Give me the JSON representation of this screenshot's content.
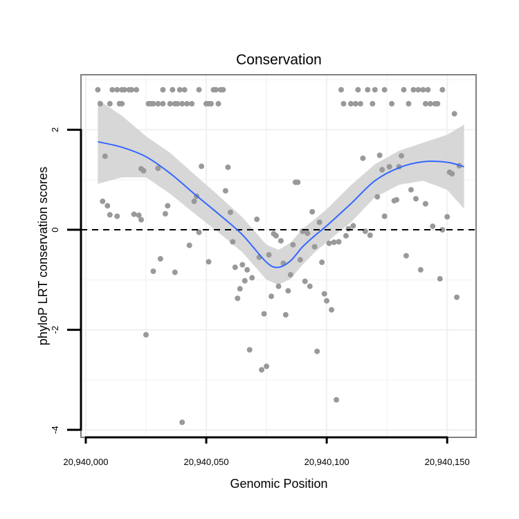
{
  "chart_data": {
    "type": "scatter",
    "title": "Conservation",
    "xlabel": "Genomic Position",
    "ylabel": "phyloP LRT conservation scores",
    "xlim": [
      20939998,
      20940162
    ],
    "ylim": [
      -4.15,
      3.1
    ],
    "xticks": [
      20940000,
      20940050,
      20940100,
      20940150
    ],
    "xtick_labels": [
      "20,940,000",
      "20,940,050",
      "20,940,100",
      "20,940,150"
    ],
    "yticks": [
      -4,
      -2,
      0,
      2
    ],
    "ytick_labels": [
      "-4",
      "-2",
      "0",
      "2"
    ],
    "grid": true,
    "reference_line": {
      "y": 0,
      "style": "dashed"
    },
    "colors": {
      "points": "#999999",
      "smooth": "#3366ff",
      "band": "#d3d3d3",
      "border": "#7f7f7f",
      "grid": "#f0f0f0"
    },
    "series": [
      {
        "name": "scores",
        "type": "scatter",
        "points": [
          [
            20940005,
            2.8
          ],
          [
            20940006,
            2.52
          ],
          [
            20940007,
            0.57
          ],
          [
            20940008,
            1.47
          ],
          [
            20940009,
            0.48
          ],
          [
            20940010,
            2.52
          ],
          [
            20940010,
            0.3
          ],
          [
            20940011,
            2.8
          ],
          [
            20940013,
            2.8
          ],
          [
            20940013,
            0.27
          ],
          [
            20940014,
            2.52
          ],
          [
            20940015,
            2.8
          ],
          [
            20940015,
            2.52
          ],
          [
            20940016,
            2.8
          ],
          [
            20940018,
            2.8
          ],
          [
            20940019,
            2.8
          ],
          [
            20940020,
            0.31
          ],
          [
            20940021,
            2.8
          ],
          [
            20940022,
            0.29
          ],
          [
            20940023,
            0.2
          ],
          [
            20940023,
            1.22
          ],
          [
            20940024,
            1.18
          ],
          [
            20940025,
            -2.1
          ],
          [
            20940026,
            2.52
          ],
          [
            20940027,
            2.52
          ],
          [
            20940028,
            -0.83
          ],
          [
            20940028,
            2.52
          ],
          [
            20940030,
            1.23
          ],
          [
            20940030,
            2.52
          ],
          [
            20940031,
            -0.58
          ],
          [
            20940032,
            2.52
          ],
          [
            20940032,
            2.8
          ],
          [
            20940033,
            0.32
          ],
          [
            20940034,
            0.48
          ],
          [
            20940035,
            2.52
          ],
          [
            20940036,
            2.8
          ],
          [
            20940037,
            2.52
          ],
          [
            20940037,
            -0.85
          ],
          [
            20940038,
            2.52
          ],
          [
            20940039,
            2.8
          ],
          [
            20940040,
            -3.85
          ],
          [
            20940040,
            2.52
          ],
          [
            20940041,
            2.8
          ],
          [
            20940042,
            2.52
          ],
          [
            20940043,
            -0.31
          ],
          [
            20940044,
            2.52
          ],
          [
            20940045,
            0.57
          ],
          [
            20940046,
            0.67
          ],
          [
            20940047,
            2.8
          ],
          [
            20940047,
            -0.05
          ],
          [
            20940048,
            1.27
          ],
          [
            20940050,
            2.52
          ],
          [
            20940051,
            2.52
          ],
          [
            20940051,
            -0.64
          ],
          [
            20940052,
            2.52
          ],
          [
            20940053,
            2.8
          ],
          [
            20940054,
            2.8
          ],
          [
            20940055,
            2.52
          ],
          [
            20940056,
            2.8
          ],
          [
            20940057,
            2.8
          ],
          [
            20940058,
            0.78
          ],
          [
            20940059,
            1.25
          ],
          [
            20940060,
            0.35
          ],
          [
            20940061,
            -0.24
          ],
          [
            20940062,
            -0.75
          ],
          [
            20940063,
            -1.37
          ],
          [
            20940064,
            -1.18
          ],
          [
            20940065,
            -0.7
          ],
          [
            20940066,
            -1.02
          ],
          [
            20940067,
            -0.8
          ],
          [
            20940068,
            -2.4
          ],
          [
            20940069,
            -0.96
          ],
          [
            20940071,
            0.21
          ],
          [
            20940072,
            -0.55
          ],
          [
            20940073,
            -2.8
          ],
          [
            20940074,
            -1.68
          ],
          [
            20940075,
            -2.73
          ],
          [
            20940076,
            -0.5
          ],
          [
            20940077,
            -1.33
          ],
          [
            20940078,
            -0.08
          ],
          [
            20940079,
            -0.12
          ],
          [
            20940080,
            -1.13
          ],
          [
            20940081,
            -0.22
          ],
          [
            20940082,
            -0.67
          ],
          [
            20940083,
            -1.7
          ],
          [
            20940084,
            -1.22
          ],
          [
            20940085,
            -0.9
          ],
          [
            20940086,
            -0.3
          ],
          [
            20940087,
            0.95
          ],
          [
            20940088,
            0.95
          ],
          [
            20940089,
            -0.6
          ],
          [
            20940090,
            -0.03
          ],
          [
            20940091,
            -1.03
          ],
          [
            20940092,
            -0.07
          ],
          [
            20940093,
            -1.13
          ],
          [
            20940094,
            0.36
          ],
          [
            20940095,
            -0.34
          ],
          [
            20940096,
            -2.43
          ],
          [
            20940097,
            0.15
          ],
          [
            20940098,
            -0.65
          ],
          [
            20940099,
            -1.28
          ],
          [
            20940100,
            -1.42
          ],
          [
            20940101,
            -0.27
          ],
          [
            20940102,
            -1.6
          ],
          [
            20940103,
            -0.25
          ],
          [
            20940104,
            -3.4
          ],
          [
            20940105,
            -0.24
          ],
          [
            20940106,
            2.8
          ],
          [
            20940107,
            2.52
          ],
          [
            20940108,
            -0.12
          ],
          [
            20940109,
            0.02
          ],
          [
            20940110,
            2.52
          ],
          [
            20940111,
            0.08
          ],
          [
            20940112,
            2.52
          ],
          [
            20940113,
            2.8
          ],
          [
            20940114,
            2.52
          ],
          [
            20940115,
            1.43
          ],
          [
            20940116,
            -0.03
          ],
          [
            20940117,
            2.8
          ],
          [
            20940118,
            -0.11
          ],
          [
            20940119,
            2.52
          ],
          [
            20940120,
            2.8
          ],
          [
            20940121,
            0.66
          ],
          [
            20940122,
            1.49
          ],
          [
            20940123,
            1.2
          ],
          [
            20940124,
            2.8
          ],
          [
            20940124,
            0.27
          ],
          [
            20940126,
            1.26
          ],
          [
            20940127,
            2.52
          ],
          [
            20940128,
            0.58
          ],
          [
            20940129,
            0.6
          ],
          [
            20940130,
            1.26
          ],
          [
            20940131,
            1.48
          ],
          [
            20940132,
            2.8
          ],
          [
            20940133,
            -0.52
          ],
          [
            20940134,
            2.52
          ],
          [
            20940135,
            0.8
          ],
          [
            20940136,
            2.8
          ],
          [
            20940137,
            0.62
          ],
          [
            20940138,
            2.8
          ],
          [
            20940139,
            -0.8
          ],
          [
            20940140,
            2.8
          ],
          [
            20940141,
            2.52
          ],
          [
            20940141,
            0.52
          ],
          [
            20940142,
            2.8
          ],
          [
            20940143,
            2.52
          ],
          [
            20940144,
            0.07
          ],
          [
            20940145,
            2.52
          ],
          [
            20940146,
            2.52
          ],
          [
            20940147,
            -0.98
          ],
          [
            20940148,
            2.8
          ],
          [
            20940148,
            0.0
          ],
          [
            20940150,
            0.26
          ],
          [
            20940151,
            1.15
          ],
          [
            20940152,
            1.12
          ],
          [
            20940153,
            2.32
          ],
          [
            20940154,
            -1.35
          ],
          [
            20940155,
            1.28
          ]
        ]
      },
      {
        "name": "smooth",
        "type": "line",
        "x": [
          20940005,
          20940015,
          20940025,
          20940035,
          20940045,
          20940055,
          20940065,
          20940075,
          20940080,
          20940085,
          20940090,
          20940095,
          20940100,
          20940110,
          20940120,
          20940130,
          20940140,
          20940150,
          20940157
        ],
        "y": [
          1.76,
          1.65,
          1.46,
          1.13,
          0.72,
          0.32,
          -0.1,
          -0.65,
          -0.75,
          -0.62,
          -0.34,
          -0.12,
          0.08,
          0.52,
          0.98,
          1.24,
          1.36,
          1.35,
          1.26
        ],
        "lower": [
          0.92,
          1.05,
          1.05,
          0.72,
          0.33,
          -0.05,
          -0.45,
          -1.0,
          -1.1,
          -0.98,
          -0.7,
          -0.45,
          -0.25,
          0.15,
          0.65,
          0.9,
          0.98,
          0.8,
          0.42
        ],
        "upper": [
          2.6,
          2.28,
          1.87,
          1.54,
          1.11,
          0.69,
          0.25,
          -0.3,
          -0.4,
          -0.26,
          0.02,
          0.21,
          0.41,
          0.89,
          1.31,
          1.58,
          1.74,
          1.9,
          2.1
        ]
      }
    ]
  }
}
